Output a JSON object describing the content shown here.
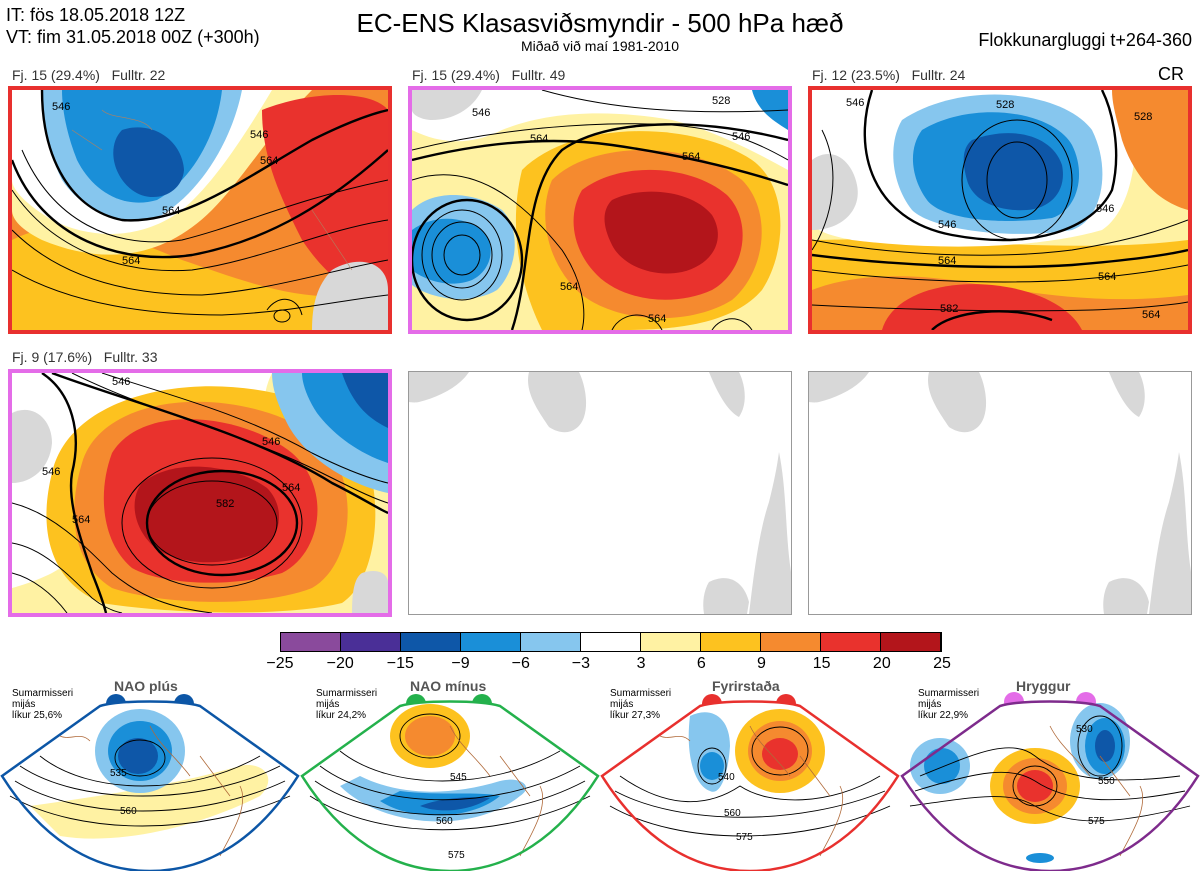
{
  "header": {
    "it_line": "IT: fös 18.05.2018 12Z",
    "vt_line": "VT: fim 31.05.2018 00Z  (+300h)",
    "title": "EC-ENS Klasasviðsmyndir - 500 hPa hæð",
    "subtitle": "Miðað við maí 1981-2010",
    "window": "Flokkunargluggi t+264-360",
    "cr": "CR"
  },
  "panels": [
    {
      "label": "Fj. 15 (29.4%)   Fulltr. 22",
      "frame_color": "#e8302e",
      "contours": [
        "546",
        "546",
        "564",
        "564",
        "564"
      ]
    },
    {
      "label": "Fj. 15 (29.4%)   Fulltr. 49",
      "frame_color": "#e46ce8",
      "contours": [
        "546",
        "528",
        "546",
        "564",
        "564",
        "564",
        "564"
      ]
    },
    {
      "label": "Fj. 12 (23.5%)   Fulltr. 24",
      "frame_color": "#e8302e",
      "contours": [
        "546",
        "528",
        "546",
        "546",
        "564",
        "564",
        "582",
        "564",
        "528"
      ]
    },
    {
      "label": "Fj. 9 (17.6%)   Fulltr. 33",
      "frame_color": "#e46ce8",
      "contours": [
        "546",
        "546",
        "546",
        "564",
        "564",
        "582"
      ]
    }
  ],
  "colorbar": {
    "ticks": [
      "−25",
      "−20",
      "−15",
      "−9",
      "−6",
      "−3",
      "3",
      "6",
      "9",
      "15",
      "20",
      "25"
    ],
    "colors": [
      "#8a4a9c",
      "#4a2f97",
      "#0e57a8",
      "#1a8fd8",
      "#86c6ee",
      "#ffffff",
      "#fff2a3",
      "#fdc21f",
      "#f58a2f",
      "#e9322d",
      "#b3151b"
    ]
  },
  "regimes": [
    {
      "name": "NAO plús",
      "small": [
        "Sumarmisseri",
        "mijás",
        "líkur 25,6%"
      ],
      "dot_color": "#0c56a6",
      "border": "#0c56a6",
      "contours": [
        "535",
        "560"
      ]
    },
    {
      "name": "NAO mínus",
      "small": [
        "Sumarmisseri",
        "mijás",
        "líkur 24,2%"
      ],
      "dot_color": "#24b14c",
      "border": "#24b14c",
      "contours": [
        "545",
        "560",
        "575"
      ]
    },
    {
      "name": "Fyrirstaða",
      "small": [
        "Sumarmisseri",
        "mijás",
        "líkur 27,3%"
      ],
      "dot_color": "#e8302e",
      "border": "#e8302e",
      "contours": [
        "540",
        "560",
        "575"
      ]
    },
    {
      "name": "Hryggur",
      "small": [
        "Sumarmisseri",
        "mijás",
        "líkur 22,9%"
      ],
      "dot_color": "#e46ce8",
      "border": "#7e2b8c",
      "contours": [
        "530",
        "550",
        "575"
      ]
    }
  ]
}
